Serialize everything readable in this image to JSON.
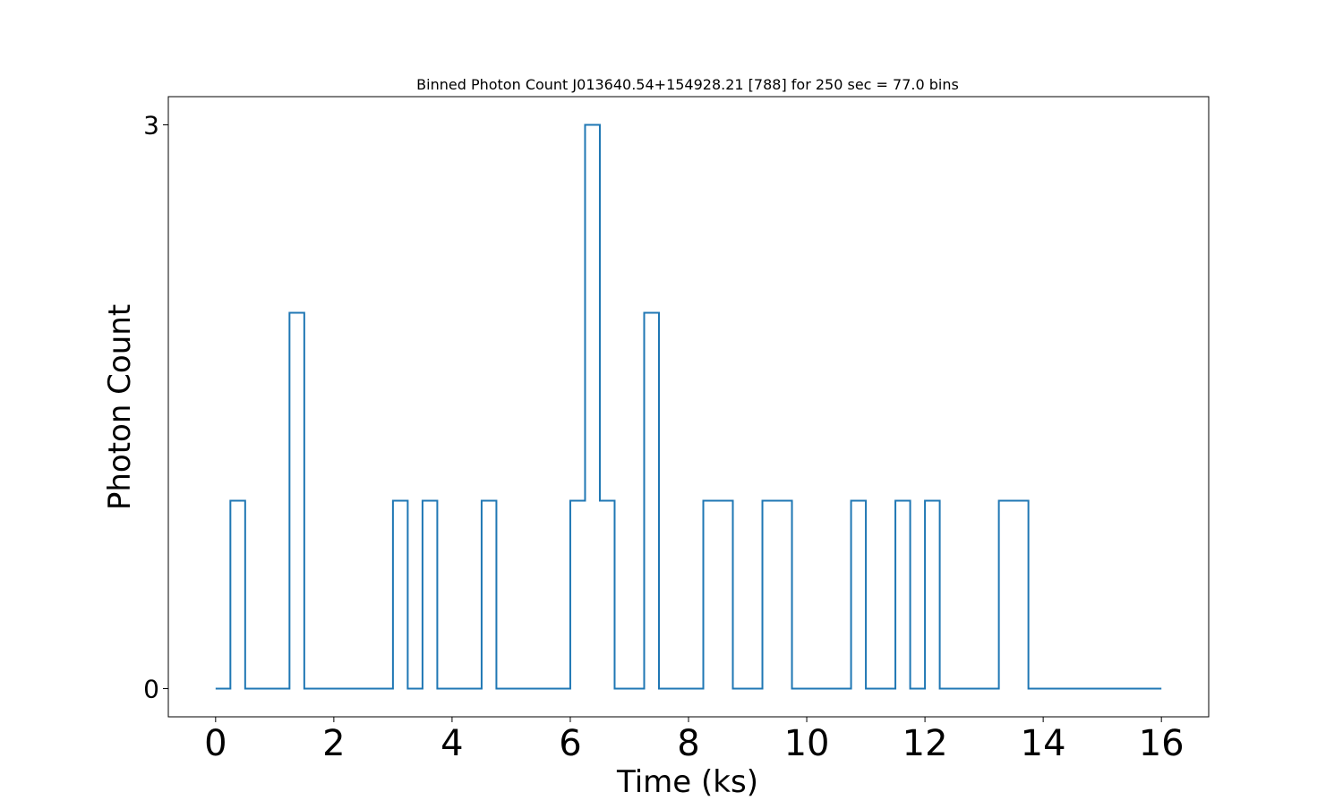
{
  "chart_data": {
    "type": "line",
    "step": true,
    "title": "Binned Photon Count J013640.54+154928.21 [788] for 250 sec = 77.0 bins",
    "xlabel": "Time (ks)",
    "ylabel": "Photon Count",
    "xlim": [
      -0.8,
      16.8
    ],
    "ylim": [
      -0.15,
      3.15
    ],
    "x_ticks": [
      0,
      2,
      4,
      6,
      8,
      10,
      12,
      14,
      16
    ],
    "y_ticks": [
      0,
      3
    ],
    "grid": false,
    "legend": "none",
    "series": [
      {
        "color": "#1f77b4",
        "bin_width_ks": 0.25,
        "x_end": 16,
        "bin_starts": [
          0,
          0.25,
          0.5,
          1.25,
          1.5,
          3.0,
          3.25,
          3.5,
          3.75,
          4.5,
          4.75,
          6.0,
          6.25,
          6.5,
          6.75,
          7.25,
          7.5,
          8.25,
          8.75,
          9.25,
          9.75,
          10.75,
          11.0,
          11.5,
          11.75,
          12.0,
          12.25,
          13.25,
          13.75
        ],
        "counts": [
          0,
          1,
          0,
          2,
          0,
          1,
          0,
          1,
          0,
          1,
          0,
          1,
          3,
          1,
          0,
          2,
          0,
          1,
          0,
          1,
          0,
          1,
          0,
          1,
          0,
          1,
          0,
          1,
          0
        ]
      }
    ]
  }
}
